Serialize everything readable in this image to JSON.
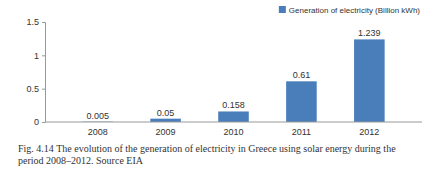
{
  "chart_data": {
    "type": "bar",
    "title": "Fig. 4.14 The evolution of the generation of electricity in Greece using solar energy during the period 2008–2012. Source EIA",
    "categories": [
      "2008",
      "2009",
      "2010",
      "2011",
      "2012"
    ],
    "series": [
      {
        "name": "Generation of electricity (Billion kWh)",
        "color": "#4a7ebb",
        "values": [
          0.005,
          0.05,
          0.158,
          0.61,
          1.239
        ]
      }
    ],
    "ylim": [
      0,
      1.5
    ],
    "yticks": [
      0,
      0.5,
      1,
      1.5
    ],
    "grid": false,
    "legend": "upper right",
    "data_labels": true
  }
}
